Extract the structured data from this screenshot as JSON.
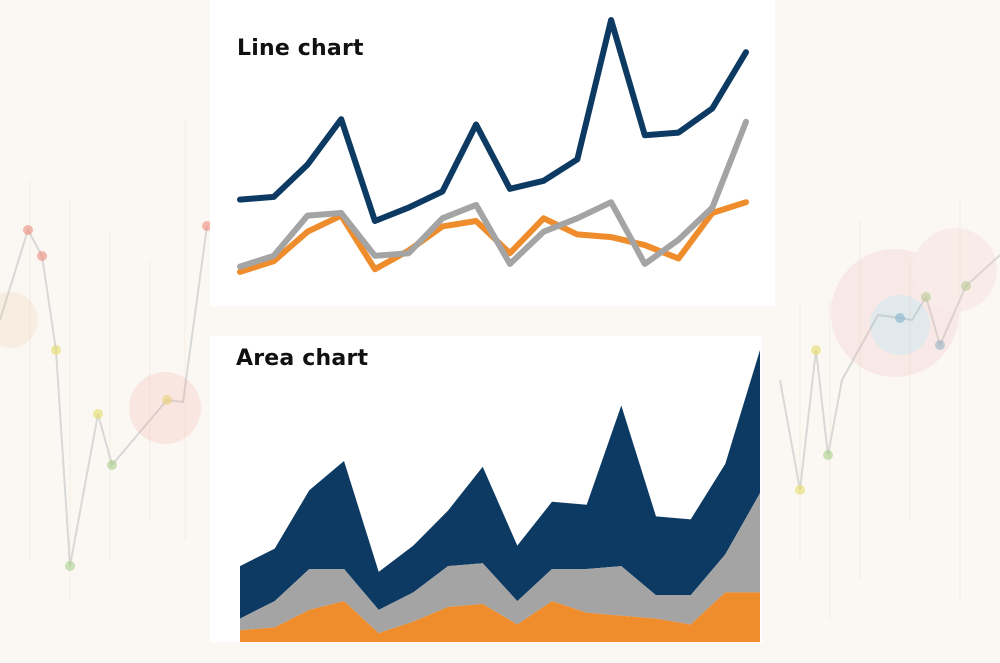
{
  "colors": {
    "navy": "#0c3a63",
    "gray": "#a4a4a4",
    "orange": "#ef8c2c"
  },
  "chart_data": [
    {
      "type": "line",
      "title": "Line chart",
      "x": [
        1,
        2,
        3,
        4,
        5,
        6,
        7,
        8,
        9,
        10,
        11,
        12,
        13,
        14,
        15,
        16
      ],
      "ylim": [
        0,
        100
      ],
      "grid": false,
      "series": [
        {
          "color": "#0c3a63",
          "values": [
            33,
            34,
            46,
            63,
            25,
            30,
            36,
            61,
            37,
            40,
            48,
            100,
            57,
            58,
            67,
            88
          ]
        },
        {
          "color": "#a4a4a4",
          "values": [
            8,
            12,
            27,
            28,
            12,
            13,
            26,
            31,
            9,
            21,
            26,
            32,
            9,
            18,
            30,
            62
          ]
        },
        {
          "color": "#ef8c2c",
          "values": [
            6,
            10,
            21,
            27,
            7,
            14,
            23,
            25,
            13,
            26,
            20,
            19,
            16,
            11,
            28,
            32
          ]
        }
      ]
    },
    {
      "type": "area",
      "title": "Area chart",
      "stacked": true,
      "x": [
        1,
        2,
        3,
        4,
        5,
        6,
        7,
        8,
        9,
        10,
        11,
        12,
        13,
        14,
        15,
        16
      ],
      "ylim": [
        0,
        100
      ],
      "grid": false,
      "series": [
        {
          "color": "#ef8c2c",
          "values": [
            4,
            5,
            11,
            14,
            3,
            7,
            12,
            13,
            6,
            14,
            10,
            9,
            8,
            6,
            17,
            17
          ]
        },
        {
          "color": "#a4a4a4",
          "values": [
            4,
            9,
            14,
            11,
            8,
            10,
            14,
            14,
            8,
            11,
            15,
            17,
            8,
            10,
            13,
            34
          ]
        },
        {
          "color": "#0c3a63",
          "values": [
            18,
            18,
            27,
            37,
            13,
            16,
            19,
            33,
            19,
            23,
            22,
            55,
            27,
            26,
            31,
            49
          ]
        }
      ]
    }
  ]
}
